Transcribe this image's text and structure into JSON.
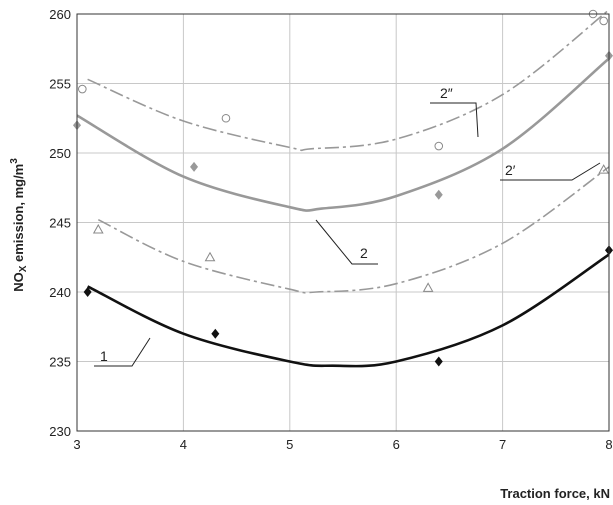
{
  "chart_data": {
    "type": "scatter",
    "title": "",
    "xlabel": "Traction force, kN",
    "ylabel_main": "NO",
    "ylabel_sub": "X",
    "ylabel_rest": " emission, mg/m",
    "ylabel_sup": "3",
    "xlim": [
      3,
      8
    ],
    "ylim": [
      230,
      260
    ],
    "x_ticks": [
      3,
      4,
      5,
      6,
      7,
      8
    ],
    "y_ticks": [
      230,
      235,
      240,
      245,
      250,
      255,
      260
    ],
    "grid": true,
    "series": [
      {
        "label": "1",
        "marker": "diamond-filled",
        "line": "solid",
        "color": "#111111",
        "points": [
          [
            3.1,
            240.0
          ],
          [
            4.3,
            237.0
          ],
          [
            6.4,
            235.0
          ],
          [
            8.0,
            243.0
          ]
        ],
        "fit": [
          [
            3.1,
            240.4
          ],
          [
            4.0,
            237.0
          ],
          [
            5.0,
            235.0
          ],
          [
            5.4,
            234.7
          ],
          [
            6.0,
            235.0
          ],
          [
            7.0,
            237.6
          ],
          [
            8.0,
            242.7
          ]
        ]
      },
      {
        "label": "2",
        "marker": "diamond-filled",
        "line": "solid",
        "color": "#999999",
        "points": [
          [
            3.0,
            252.0
          ],
          [
            4.1,
            249.0
          ],
          [
            6.4,
            247.0
          ],
          [
            8.0,
            257.0
          ]
        ],
        "fit": [
          [
            3.0,
            252.7
          ],
          [
            4.0,
            248.3
          ],
          [
            5.0,
            246.1
          ],
          [
            5.3,
            246.0
          ],
          [
            6.0,
            246.9
          ],
          [
            7.0,
            250.3
          ],
          [
            8.0,
            256.8
          ]
        ]
      },
      {
        "label": "2′",
        "marker": "triangle-open",
        "line": "dash-dot",
        "color": "#999999",
        "points": [
          [
            3.2,
            244.5
          ],
          [
            4.25,
            242.5
          ],
          [
            6.3,
            240.3
          ],
          [
            7.95,
            248.8
          ]
        ],
        "fit": [
          [
            3.2,
            245.2
          ],
          [
            4.0,
            242.2
          ],
          [
            5.0,
            240.2
          ],
          [
            5.25,
            240.0
          ],
          [
            6.0,
            240.6
          ],
          [
            7.0,
            243.5
          ],
          [
            8.0,
            249.0
          ]
        ]
      },
      {
        "label": "2″",
        "marker": "circle-open",
        "line": "dash-dot",
        "color": "#999999",
        "points": [
          [
            3.05,
            254.6
          ],
          [
            4.4,
            252.5
          ],
          [
            6.4,
            250.5
          ],
          [
            7.85,
            260.0
          ],
          [
            7.95,
            259.5
          ]
        ],
        "fit": [
          [
            3.1,
            255.3
          ],
          [
            4.0,
            252.3
          ],
          [
            5.0,
            250.4
          ],
          [
            5.2,
            250.3
          ],
          [
            6.0,
            251.0
          ],
          [
            7.0,
            254.2
          ],
          [
            8.0,
            260.3
          ]
        ]
      }
    ]
  }
}
